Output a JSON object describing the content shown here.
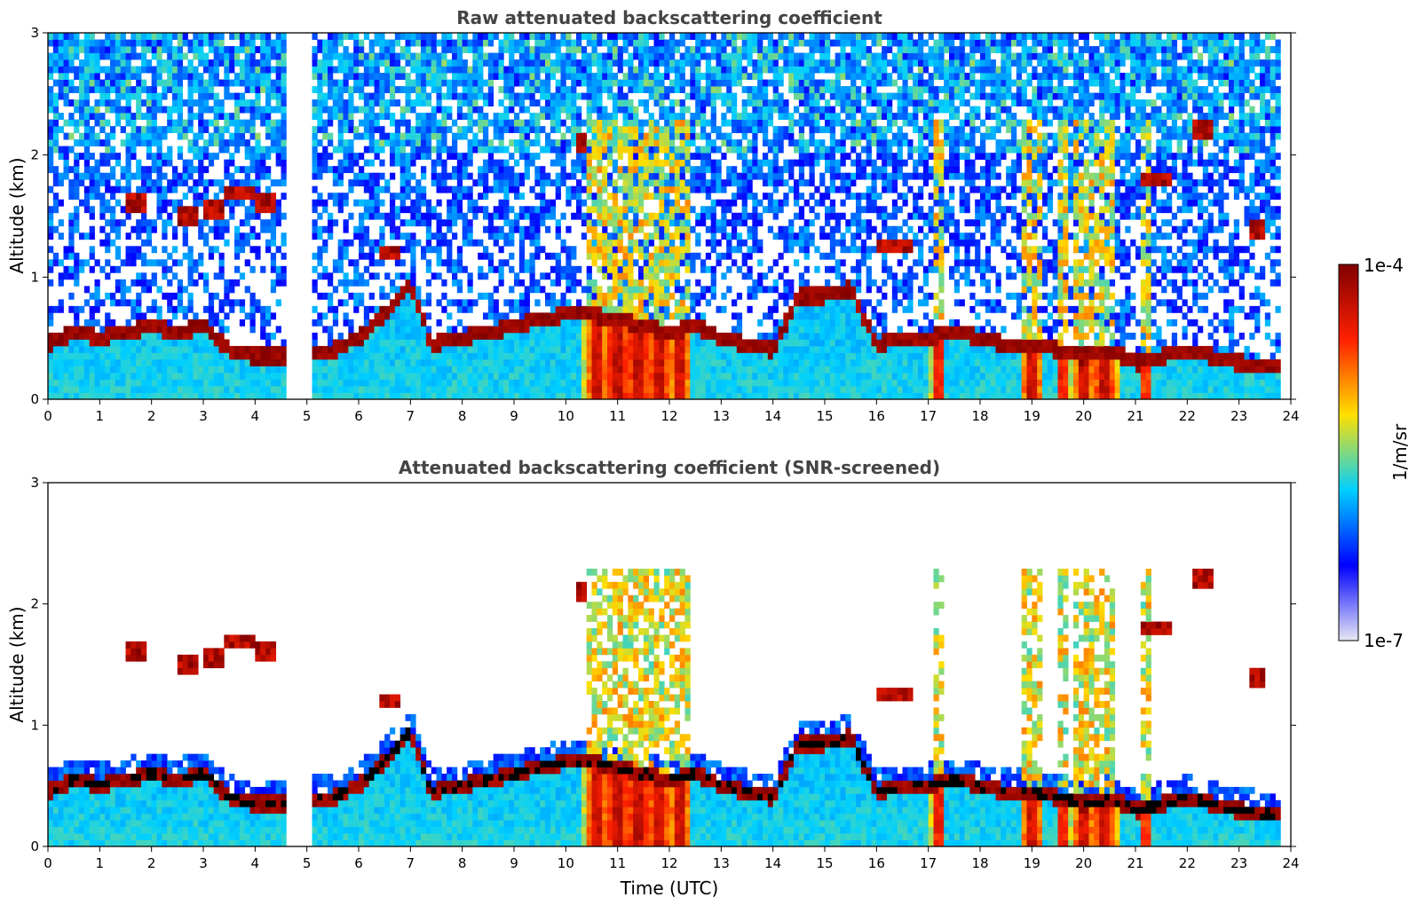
{
  "chart_data": [
    {
      "type": "heatmap",
      "title": "Raw attenuated backscattering coefficient",
      "xlabel": "",
      "ylabel": "Altitude (km)",
      "xlim": [
        0,
        24
      ],
      "ylim": [
        0,
        3
      ],
      "xticks": [
        "0",
        "1",
        "2",
        "3",
        "4",
        "5",
        "6",
        "7",
        "8",
        "9",
        "10",
        "11",
        "12",
        "13",
        "14",
        "15",
        "16",
        "17",
        "18",
        "19",
        "20",
        "21",
        "22",
        "23",
        "24"
      ],
      "yticks": [
        "0",
        "1",
        "2",
        "3"
      ],
      "data_gap_hours": [
        4.62,
        5.07
      ],
      "screened": false
    },
    {
      "type": "heatmap",
      "title": "Attenuated backscattering coefficient (SNR-screened)",
      "xlabel": "Time (UTC)",
      "ylabel": "Altitude (km)",
      "xlim": [
        0,
        24
      ],
      "ylim": [
        0,
        3
      ],
      "xticks": [
        "0",
        "1",
        "2",
        "3",
        "4",
        "5",
        "6",
        "7",
        "8",
        "9",
        "10",
        "11",
        "12",
        "13",
        "14",
        "15",
        "16",
        "17",
        "18",
        "19",
        "20",
        "21",
        "22",
        "23",
        "24"
      ],
      "yticks": [
        "0",
        "1",
        "2",
        "3"
      ],
      "data_gap_hours": [
        4.62,
        5.07
      ],
      "screened": true
    }
  ],
  "colorbar": {
    "label": "1/m/sr",
    "max_label": "1e-4",
    "min_label": "1e-7",
    "scale": "log",
    "stops": [
      "#e8e8f4",
      "#0000ff",
      "#00d0ff",
      "#ffe000",
      "#ff2000",
      "#800000"
    ]
  },
  "profile": {
    "pbl_top_km": [
      [
        0.0,
        0.45
      ],
      [
        0.5,
        0.55
      ],
      [
        1.0,
        0.5
      ],
      [
        1.5,
        0.55
      ],
      [
        2.0,
        0.6
      ],
      [
        2.5,
        0.55
      ],
      [
        3.0,
        0.6
      ],
      [
        3.5,
        0.4
      ],
      [
        4.0,
        0.35
      ],
      [
        4.6,
        0.35
      ],
      [
        5.1,
        0.4
      ],
      [
        5.5,
        0.4
      ],
      [
        6.0,
        0.5
      ],
      [
        6.5,
        0.7
      ],
      [
        7.0,
        0.95
      ],
      [
        7.4,
        0.45
      ],
      [
        8.0,
        0.5
      ],
      [
        8.5,
        0.55
      ],
      [
        9.0,
        0.6
      ],
      [
        9.5,
        0.65
      ],
      [
        10.0,
        0.7
      ],
      [
        10.5,
        0.7
      ],
      [
        11.0,
        0.65
      ],
      [
        11.5,
        0.6
      ],
      [
        12.0,
        0.55
      ],
      [
        12.5,
        0.6
      ],
      [
        13.0,
        0.5
      ],
      [
        13.5,
        0.45
      ],
      [
        14.0,
        0.4
      ],
      [
        14.5,
        0.85
      ],
      [
        15.0,
        0.85
      ],
      [
        15.5,
        0.9
      ],
      [
        16.0,
        0.45
      ],
      [
        16.5,
        0.5
      ],
      [
        17.0,
        0.5
      ],
      [
        17.5,
        0.55
      ],
      [
        18.0,
        0.5
      ],
      [
        18.5,
        0.45
      ],
      [
        19.0,
        0.45
      ],
      [
        19.5,
        0.4
      ],
      [
        20.0,
        0.35
      ],
      [
        20.5,
        0.4
      ],
      [
        21.0,
        0.3
      ],
      [
        21.5,
        0.35
      ],
      [
        22.0,
        0.4
      ],
      [
        22.5,
        0.35
      ],
      [
        23.0,
        0.3
      ],
      [
        23.8,
        0.25
      ]
    ],
    "strong_columns_h": [
      [
        10.6,
        0.25
      ],
      [
        11.0,
        0.35
      ],
      [
        11.4,
        0.35
      ],
      [
        11.8,
        0.3
      ],
      [
        12.2,
        0.25
      ],
      [
        17.2,
        0.15
      ],
      [
        19.0,
        0.25
      ],
      [
        19.6,
        0.15
      ],
      [
        20.0,
        0.25
      ],
      [
        20.4,
        0.3
      ],
      [
        21.2,
        0.12
      ]
    ],
    "elevated_layers": [
      [
        1.7,
        1.6,
        0.25
      ],
      [
        2.7,
        1.5,
        0.2
      ],
      [
        3.2,
        1.55,
        0.2
      ],
      [
        3.7,
        1.7,
        0.3
      ],
      [
        4.2,
        1.6,
        0.2
      ],
      [
        6.6,
        1.2,
        0.25
      ],
      [
        10.3,
        2.1,
        0.1
      ],
      [
        16.3,
        1.25,
        0.35
      ],
      [
        21.4,
        1.8,
        0.3
      ],
      [
        22.3,
        2.2,
        0.25
      ],
      [
        23.3,
        1.4,
        0.15
      ]
    ]
  }
}
